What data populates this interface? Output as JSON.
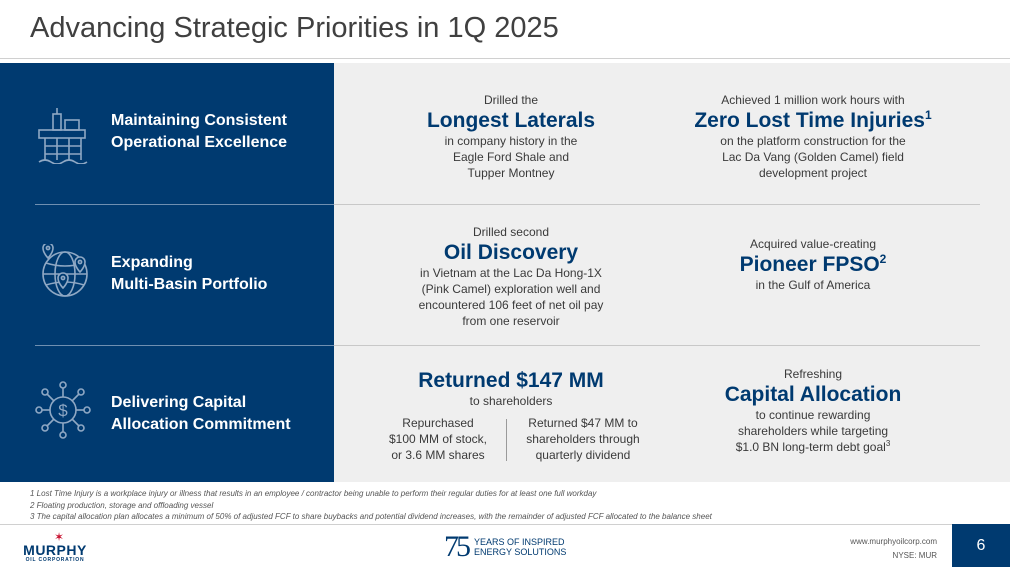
{
  "slide": {
    "title": "Advancing Strategic Priorities in 1Q 2025",
    "page_number": "6",
    "colors": {
      "navy": "#003a70",
      "panel": "#efefef",
      "accent_red": "#c8102e"
    }
  },
  "rows": [
    {
      "label_line1": "Maintaining Consistent",
      "label_line2": "Operational Excellence",
      "icon": "offshore-platform-icon",
      "left": {
        "pre": "Drilled the",
        "headline": "Longest Laterals",
        "body": [
          "in company history in the",
          "Eagle Ford Shale and",
          "Tupper Montney"
        ]
      },
      "right": {
        "pre": "Achieved 1 million work hours with",
        "headline": "Zero Lost Time Injuries",
        "sup": "1",
        "body": [
          "on the platform construction for the",
          "Lac Da Vang (Golden Camel) field",
          "development project"
        ]
      }
    },
    {
      "label_line1": "Expanding",
      "label_line2": "Multi-Basin Portfolio",
      "icon": "globe-pin-icon",
      "left": {
        "pre": "Drilled second",
        "headline": "Oil Discovery",
        "body": [
          "in Vietnam at the Lac Da Hong-1X",
          "(Pink Camel) exploration well and",
          "encountered 106 feet of net oil pay",
          "from one reservoir"
        ]
      },
      "right": {
        "pre": "Acquired value-creating",
        "headline": "Pioneer FPSO",
        "sup": "2",
        "body": [
          "in the Gulf of America"
        ]
      }
    },
    {
      "label_line1": "Delivering Capital",
      "label_line2": "Allocation Commitment",
      "icon": "dollar-network-icon",
      "left": {
        "headline": "Returned $147 MM",
        "body": [
          "to shareholders"
        ],
        "sub_left": [
          "Repurchased",
          "$100 MM of stock,",
          "or 3.6 MM shares"
        ],
        "sub_right": [
          "Returned $47 MM to",
          "shareholders through",
          "quarterly dividend"
        ]
      },
      "right": {
        "pre": "Refreshing",
        "headline": "Capital Allocation",
        "body": [
          "to continue rewarding",
          "shareholders while targeting"
        ],
        "last_line": "$1.0 BN long-term debt goal",
        "last_sup": "3"
      }
    }
  ],
  "footnotes": [
    "1 Lost Time Injury is a workplace injury or illness that results in an employee / contractor being unable to perform their regular duties for at least one full workday",
    "2 Floating production, storage and offloading vessel",
    "3 The capital allocation plan allocates a minimum of 50% of adjusted FCF to share buybacks and potential dividend increases, with the remainder of adjusted FCF allocated to the balance sheet"
  ],
  "footer": {
    "logo_name": "MURPHY",
    "logo_sub": "OIL CORPORATION",
    "anniversary_number": "75",
    "anniversary_line1": "YEARS OF INSPIRED",
    "anniversary_line2": "ENERGY SOLUTIONS",
    "website": "www.murphyoilcorp.com",
    "ticker": "NYSE: MUR"
  }
}
